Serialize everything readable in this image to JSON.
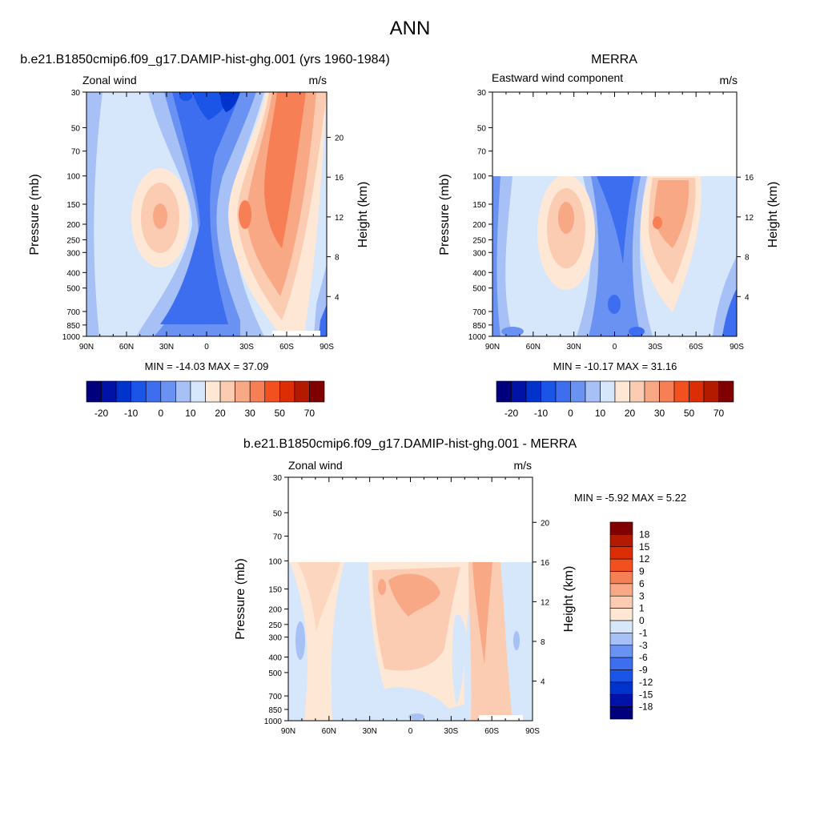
{
  "page_title": "ANN",
  "colors": {
    "main": [
      "#00007f",
      "#0012a8",
      "#0033cc",
      "#1a55e8",
      "#3d6ef0",
      "#6a92f2",
      "#a7c0f5",
      "#d6e6fb",
      "#fee7d5",
      "#fcccb2",
      "#f9a886",
      "#f77f55",
      "#f2501f",
      "#dd2d05",
      "#b31a00",
      "#800000"
    ],
    "diff": [
      "#00007f",
      "#0012a8",
      "#0033cc",
      "#1a55e8",
      "#3d6ef0",
      "#6a92f2",
      "#a7c0f5",
      "#d6e6fb",
      "#fee7d5",
      "#fcccb2",
      "#f9a886",
      "#f77f55",
      "#f2501f",
      "#dd2d05",
      "#b31a00",
      "#800000"
    ]
  },
  "panels": [
    {
      "id": "model",
      "title": "b.e21.B1850cmip6.f09_g17.DAMIP-hist-ghg.001 (yrs 1960-1984)",
      "left_label": "Zonal wind",
      "right_label": "m/s",
      "stats": "MIN = -14.03  MAX =  37.09"
    },
    {
      "id": "obs",
      "title": "MERRA",
      "left_label": "Eastward wind component",
      "right_label": "m/s",
      "stats": "MIN = -10.17  MAX =  31.16"
    },
    {
      "id": "diff",
      "title": "b.e21.B1850cmip6.f09_g17.DAMIP-hist-ghg.001 - MERRA",
      "left_label": "Zonal wind",
      "right_label": "m/s",
      "stats": "MIN =  -5.92  MAX =   5.22"
    }
  ],
  "chart_data": [
    {
      "type": "heatmap",
      "title": "b.e21.B1850cmip6.f09_g17.DAMIP-hist-ghg.001 (yrs 1960-1984)",
      "variable": "Zonal wind",
      "units": "m/s",
      "xlabel": "",
      "ylabel": "Pressure (mb)",
      "y2label": "Height (km)",
      "x_ticks": [
        "90N",
        "60N",
        "30N",
        "0",
        "30S",
        "60S",
        "90S"
      ],
      "y_ticks": [
        30,
        50,
        70,
        100,
        150,
        200,
        250,
        300,
        400,
        500,
        700,
        850,
        1000
      ],
      "y2_ticks": [
        4,
        8,
        12,
        16,
        20
      ],
      "x_range": [
        90,
        -90
      ],
      "y_range": [
        1000,
        30
      ],
      "y_scale": "log",
      "min": -14.03,
      "max": 37.09,
      "features": [
        {
          "lat": 35,
          "p": 200,
          "value": 22
        },
        {
          "lat": -45,
          "p": 200,
          "value": 33
        },
        {
          "lat": -55,
          "p": 30,
          "value": 37
        },
        {
          "lat": 15,
          "p": 40,
          "value": -14
        }
      ],
      "colorbar": {
        "labels": [
          "-20",
          "-10",
          "0",
          "10",
          "20",
          "30",
          "50",
          "70"
        ]
      }
    },
    {
      "type": "heatmap",
      "title": "MERRA",
      "variable": "Eastward wind component",
      "units": "m/s",
      "xlabel": "",
      "ylabel": "Pressure (mb)",
      "y2label": "Height (km)",
      "x_ticks": [
        "90N",
        "60N",
        "30N",
        "0",
        "30S",
        "60S",
        "90S"
      ],
      "y_ticks": [
        30,
        50,
        70,
        100,
        150,
        200,
        250,
        300,
        400,
        500,
        700,
        850,
        1000
      ],
      "y2_ticks": [
        4,
        8,
        12,
        16
      ],
      "x_range": [
        90,
        -90
      ],
      "y_range": [
        1000,
        30
      ],
      "y_scale": "log",
      "data_top_p": 100,
      "min": -10.17,
      "max": 31.16,
      "features": [
        {
          "lat": 35,
          "p": 200,
          "value": 22
        },
        {
          "lat": -45,
          "p": 190,
          "value": 31
        }
      ],
      "colorbar": {
        "labels": [
          "-20",
          "-10",
          "0",
          "10",
          "20",
          "30",
          "50",
          "70"
        ]
      }
    },
    {
      "type": "heatmap",
      "title": "b.e21.B1850cmip6.f09_g17.DAMIP-hist-ghg.001 - MERRA",
      "variable": "Zonal wind",
      "units": "m/s",
      "xlabel": "",
      "ylabel": "Pressure (mb)",
      "y2label": "Height (km)",
      "x_ticks": [
        "90N",
        "60N",
        "30N",
        "0",
        "30S",
        "60S",
        "90S"
      ],
      "y_ticks": [
        30,
        50,
        70,
        100,
        150,
        200,
        250,
        300,
        400,
        500,
        700,
        850,
        1000
      ],
      "y2_ticks": [
        4,
        8,
        12,
        16,
        20
      ],
      "x_range": [
        90,
        -90
      ],
      "y_range": [
        1000,
        30
      ],
      "y_scale": "log",
      "data_top_p": 100,
      "min": -5.92,
      "max": 5.22,
      "colorbar": {
        "labels": [
          "18",
          "15",
          "12",
          "9",
          "6",
          "3",
          "1",
          "0",
          "-1",
          "-3",
          "-6",
          "-9",
          "-12",
          "-15",
          "-18"
        ]
      }
    }
  ]
}
